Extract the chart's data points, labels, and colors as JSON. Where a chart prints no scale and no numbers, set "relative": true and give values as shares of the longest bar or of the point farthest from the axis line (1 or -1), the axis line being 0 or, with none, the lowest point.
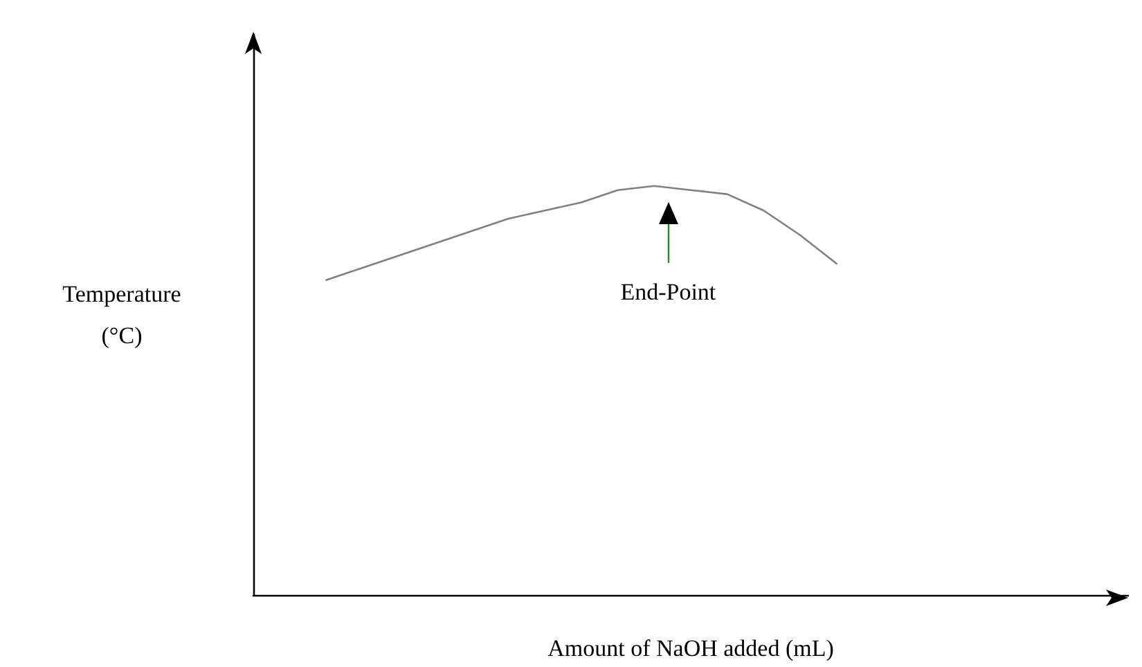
{
  "chart_data": {
    "type": "line",
    "relative": true,
    "xlabel": "Amount of NaOH added (mL)",
    "ylabel": "Temperature\n(°C)",
    "categories": [
      null,
      null,
      null,
      null,
      null,
      null,
      null,
      null,
      null,
      null,
      null,
      null,
      null,
      null,
      null,
      null,
      null,
      null,
      null,
      null,
      null,
      null,
      null,
      null,
      null
    ],
    "series": [
      {
        "color": "#808080",
        "values": [
          null,
          null,
          0.77,
          0.8,
          0.83,
          0.86,
          0.89,
          0.92,
          0.94,
          0.96,
          0.99,
          1,
          0.99,
          0.98,
          0.94,
          0.88,
          0.81,
          null,
          null,
          null,
          null,
          null,
          null,
          null,
          null
        ]
      }
    ],
    "annotations": [
      "End-Point"
    ],
    "marker": "none",
    "line_style": "solid",
    "grid": false
  }
}
